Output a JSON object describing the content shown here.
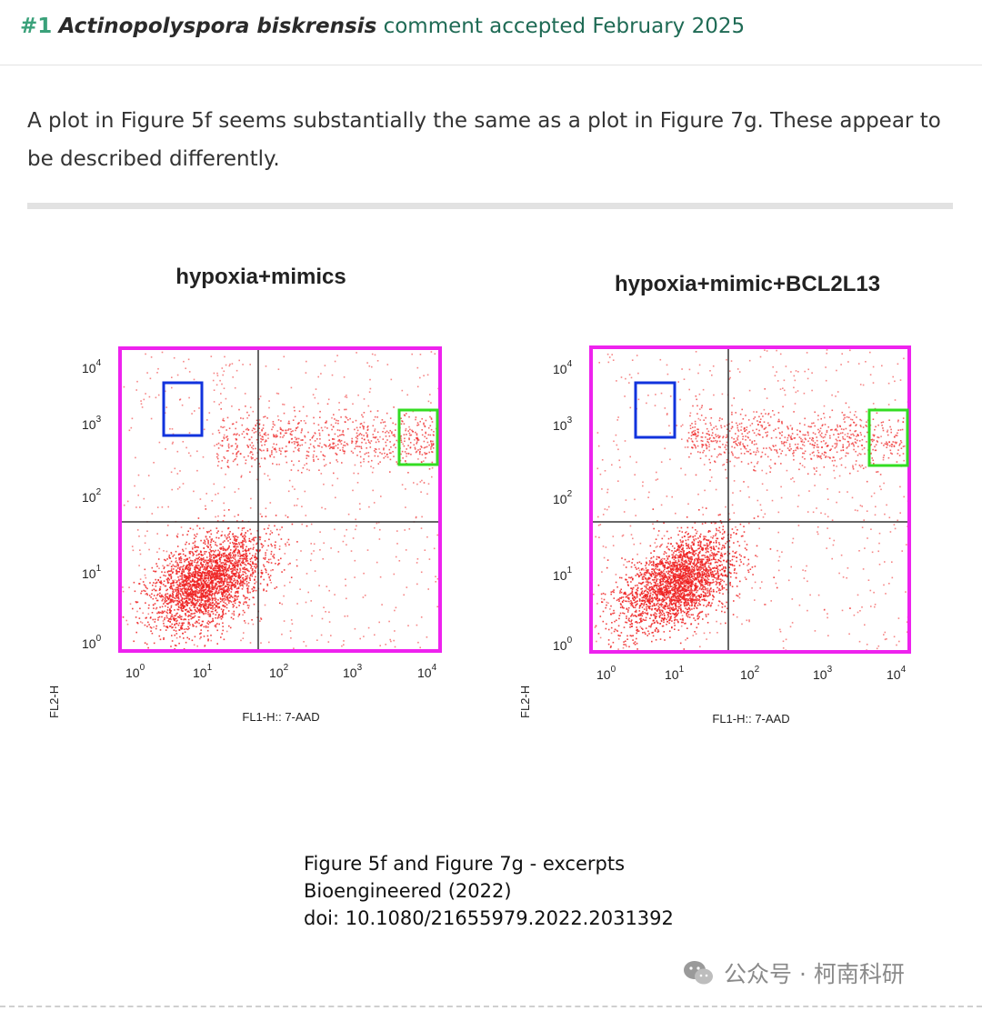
{
  "header": {
    "comment_number": "#1",
    "species": "Actinopolyspora biskrensis",
    "status": "comment accepted February 2025"
  },
  "comment": {
    "text": "A plot in Figure 5f seems substantially the same as a plot in Figure 7g. These appear to be described differently."
  },
  "figure": {
    "panels": [
      {
        "title": "hypoxia+mimics",
        "ylabel": "FL2-H",
        "xlabel": "FL1-H:: 7-AAD",
        "tick_base": "10",
        "tick_exponents": [
          "0",
          "1",
          "2",
          "3",
          "4"
        ],
        "dot_color": "#ee2222"
      },
      {
        "title": "hypoxia+mimic+BCL2L13",
        "ylabel": "FL2-H",
        "xlabel": "FL1-H:: 7-AAD",
        "tick_base": "10",
        "tick_exponents": [
          "0",
          "1",
          "2",
          "3",
          "4"
        ],
        "dot_color": "#ee2222"
      }
    ],
    "highlight_colors": {
      "panel_border": "#ee22ee",
      "upper_left_box": "#1133dd",
      "upper_right_box": "#33dd22"
    },
    "caption_lines": [
      "Figure 5f and Figure 7g - excerpts",
      "Bioengineered (2022)",
      "doi: 10.1080/21655979.2022.2031392"
    ]
  },
  "watermark": {
    "icon": "wechat-icon",
    "text": "公众号 · 柯南科研"
  }
}
